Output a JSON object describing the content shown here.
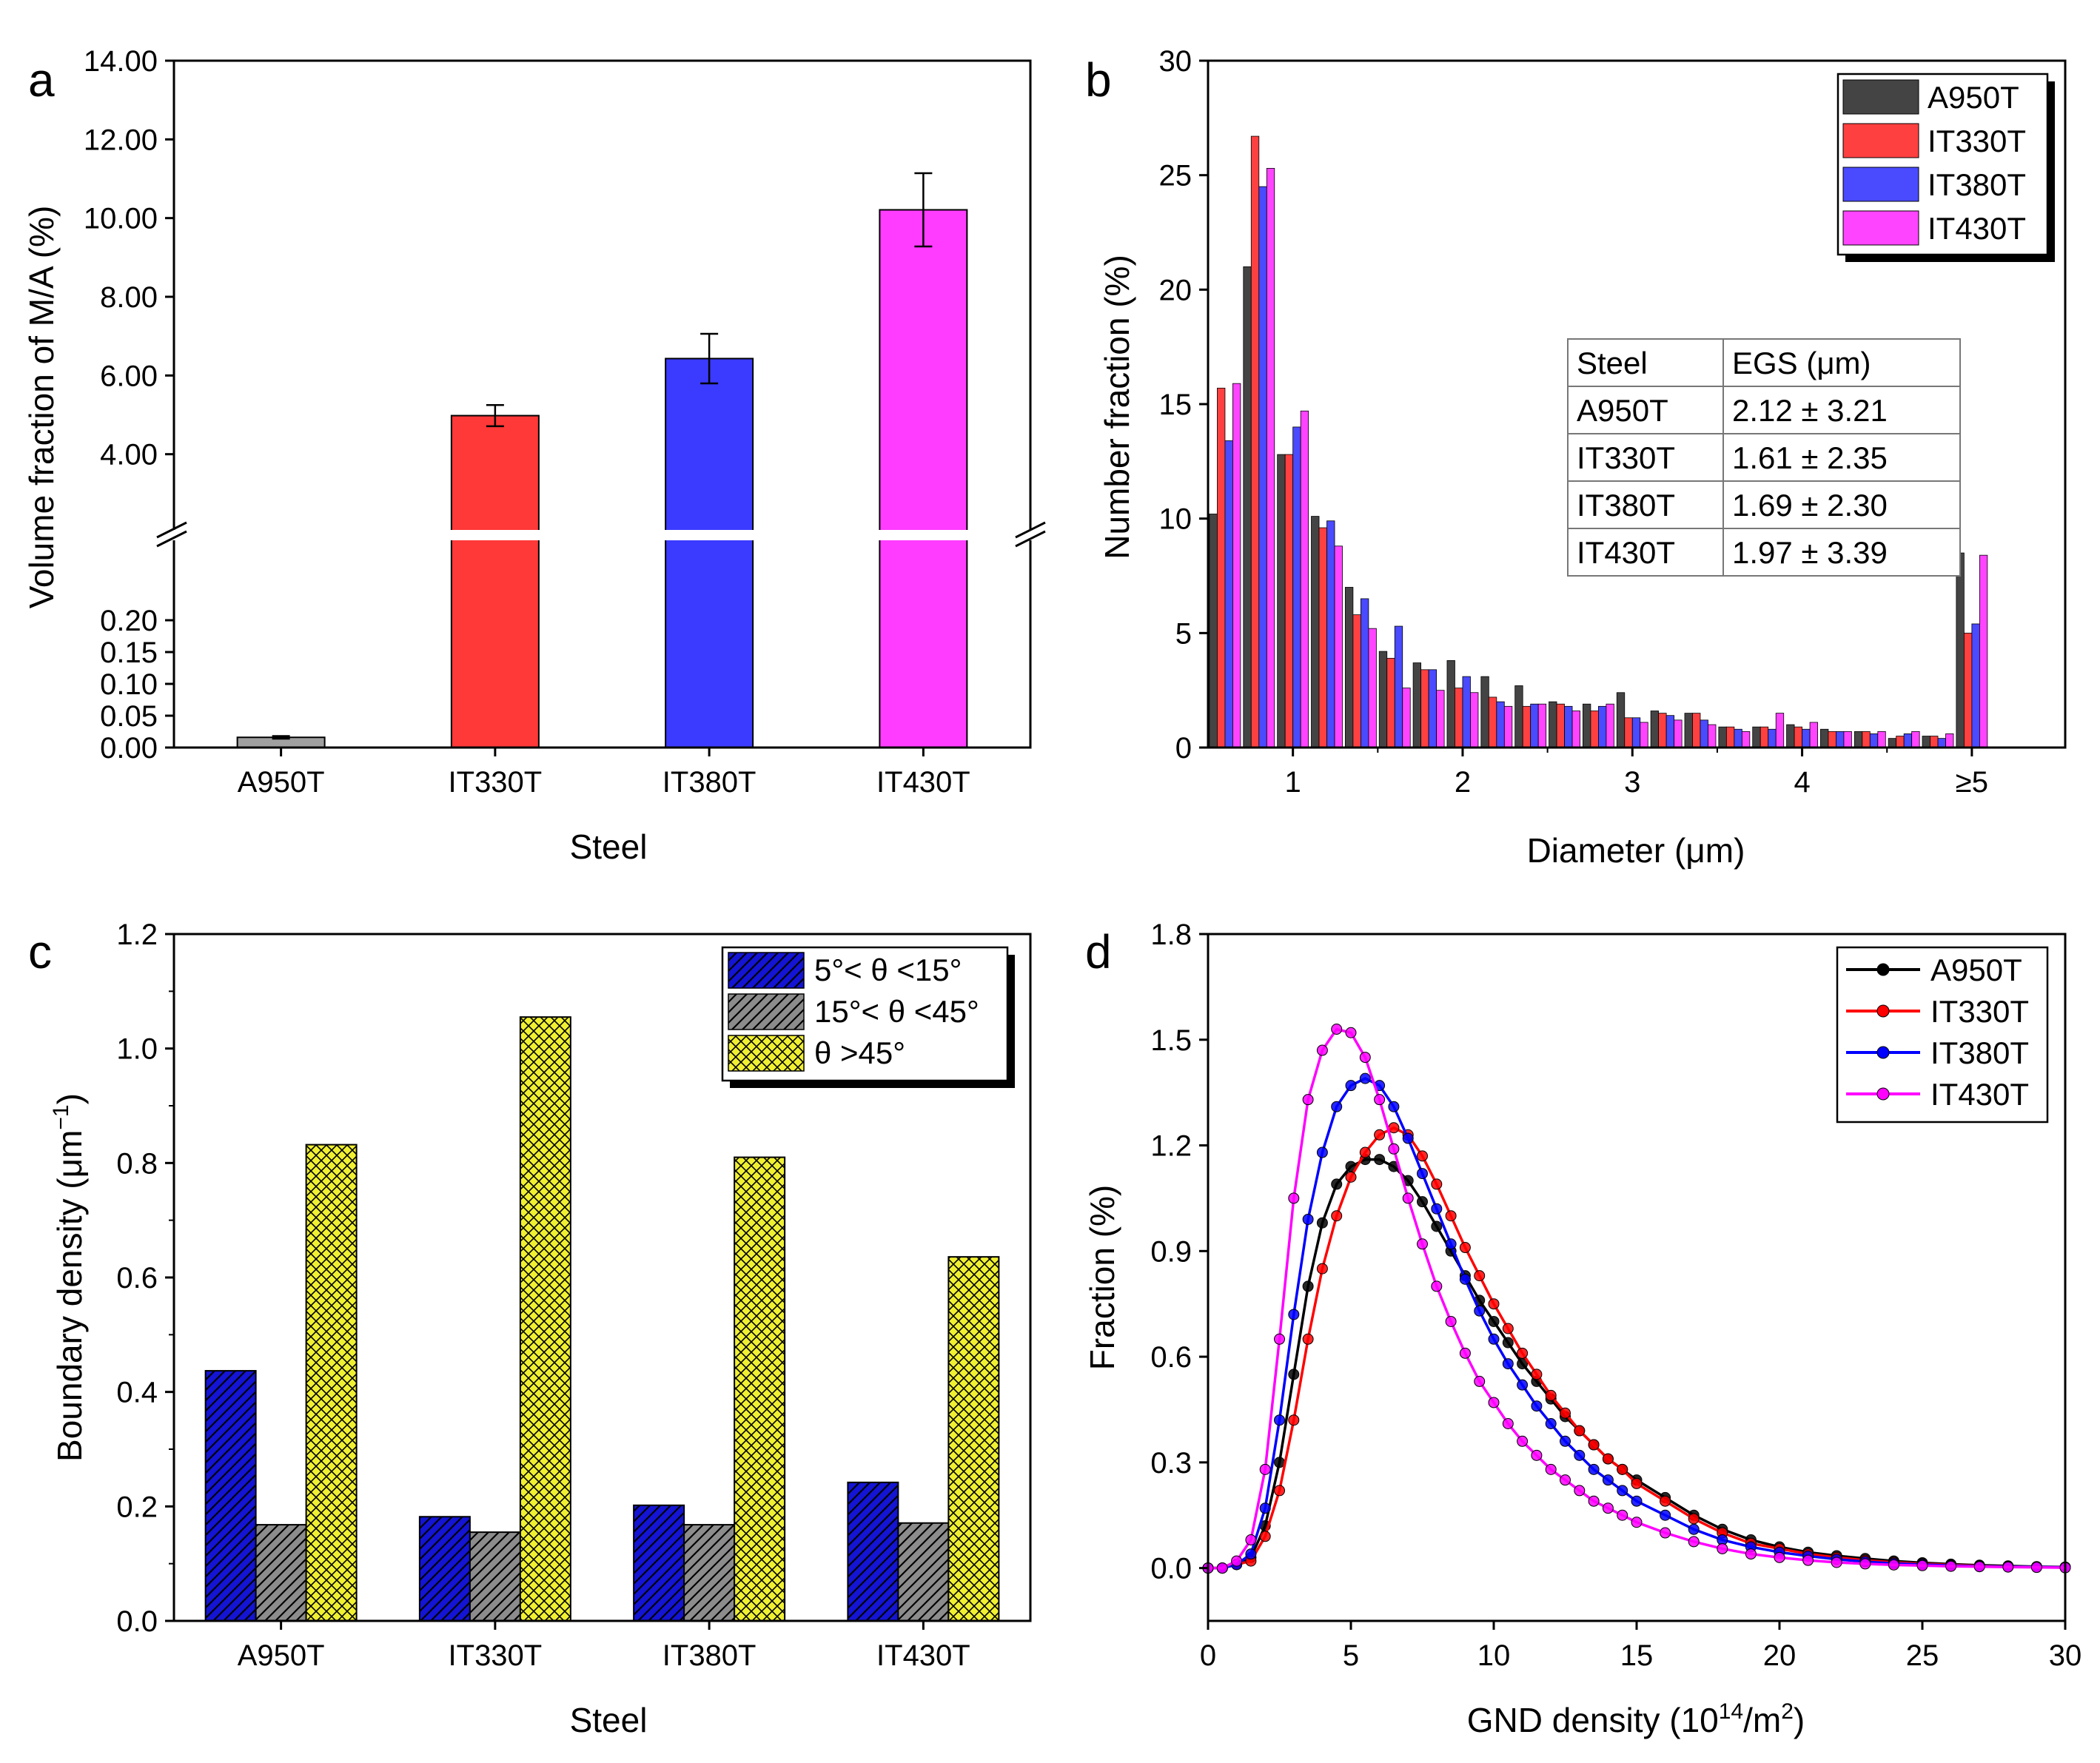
{
  "figure_labels": {
    "a": "a",
    "b": "b",
    "c": "c",
    "d": "d"
  },
  "chart_data": [
    {
      "id": "a",
      "type": "bar",
      "title": "",
      "xlabel": "Steel",
      "ylabel": "Volume fraction of M/A (%)",
      "categories": [
        "A950T",
        "IT330T",
        "IT380T",
        "IT430T"
      ],
      "values": [
        0.016,
        4.98,
        6.43,
        10.21
      ],
      "errors": [
        0.002,
        0.27,
        0.63,
        0.93
      ],
      "colors": [
        "#a0a0a0",
        "#ff3838",
        "#3b3bff",
        "#ff3cff"
      ],
      "axis_break": true,
      "lower_ylim": [
        0,
        0.25
      ],
      "upper_ylim": [
        2,
        14
      ],
      "lower_ticks": [
        "0.00",
        "0.05",
        "0.10",
        "0.15",
        "0.20"
      ],
      "upper_ticks": [
        "4.00",
        "6.00",
        "8.00",
        "10.00",
        "12.00",
        "14.00"
      ]
    },
    {
      "id": "b",
      "type": "bar",
      "title": "",
      "xlabel": "Diameter (μm)",
      "ylabel": "Number fraction (%)",
      "xlim": [
        0.5,
        5.55
      ],
      "ylim": [
        0,
        30
      ],
      "xticks": [
        "1",
        "2",
        "3",
        "4",
        "≥5"
      ],
      "yticks": [
        "0",
        "5",
        "10",
        "15",
        "20",
        "25",
        "30"
      ],
      "bin_centers": [
        0.6,
        0.8,
        1.0,
        1.2,
        1.4,
        1.6,
        1.8,
        2.0,
        2.2,
        2.4,
        2.6,
        2.8,
        3.0,
        3.2,
        3.4,
        3.6,
        3.8,
        4.0,
        4.2,
        4.4,
        4.6,
        4.8,
        5.0
      ],
      "tick_positions": [
        1,
        2,
        3,
        4,
        5
      ],
      "series": [
        {
          "name": "A950T",
          "color": "#444444",
          "values": [
            10.2,
            21.0,
            12.8,
            10.1,
            7.0,
            4.2,
            3.7,
            3.8,
            3.1,
            2.7,
            2.0,
            1.9,
            2.4,
            1.6,
            1.5,
            0.9,
            0.9,
            1.0,
            0.8,
            0.7,
            0.4,
            0.5,
            8.5
          ]
        },
        {
          "name": "IT330T",
          "color": "#ff4040",
          "values": [
            15.7,
            26.7,
            12.8,
            9.6,
            5.8,
            3.9,
            3.4,
            2.6,
            2.2,
            1.8,
            1.9,
            1.6,
            1.3,
            1.5,
            1.5,
            0.9,
            0.9,
            0.9,
            0.7,
            0.7,
            0.5,
            0.5,
            5.0
          ]
        },
        {
          "name": "IT380T",
          "color": "#4a4aff",
          "values": [
            13.4,
            24.5,
            14.0,
            9.9,
            6.5,
            5.3,
            3.4,
            3.1,
            2.0,
            1.9,
            1.8,
            1.8,
            1.3,
            1.4,
            1.2,
            0.8,
            0.8,
            0.8,
            0.7,
            0.6,
            0.6,
            0.4,
            5.4
          ]
        },
        {
          "name": "IT430T",
          "color": "#ff44ff",
          "values": [
            15.9,
            25.3,
            14.7,
            8.8,
            5.2,
            2.6,
            2.5,
            2.4,
            1.8,
            1.9,
            1.6,
            1.9,
            1.1,
            1.2,
            1.0,
            0.7,
            1.5,
            1.1,
            0.7,
            0.7,
            0.7,
            0.6,
            8.4
          ]
        }
      ],
      "table": {
        "headers": [
          "Steel",
          "EGS (μm)"
        ],
        "rows": [
          [
            "A950T",
            "2.12 ± 3.21"
          ],
          [
            "IT330T",
            "1.61 ± 2.35"
          ],
          [
            "IT380T",
            "1.69 ± 2.30"
          ],
          [
            "IT430T",
            "1.97 ± 3.39"
          ]
        ]
      }
    },
    {
      "id": "c",
      "type": "bar",
      "title": "",
      "xlabel": "Steel",
      "ylabel": "Boundary density (μm⁻¹)",
      "ylim": [
        0,
        1.2
      ],
      "yticks": [
        "0.0",
        "0.2",
        "0.4",
        "0.6",
        "0.8",
        "1.0",
        "1.2"
      ],
      "categories": [
        "A950T",
        "IT330T",
        "IT380T",
        "IT430T"
      ],
      "series": [
        {
          "name": "5°< θ <15°",
          "color": "#1414d4",
          "pattern": "diag",
          "values": [
            0.437,
            0.182,
            0.202,
            0.242
          ]
        },
        {
          "name": "15°< θ <45°",
          "color": "#8c8c8c",
          "pattern": "diag",
          "values": [
            0.168,
            0.155,
            0.168,
            0.171
          ]
        },
        {
          "name": "θ >45°",
          "color": "#f0f032",
          "pattern": "cross",
          "values": [
            0.832,
            1.055,
            0.81,
            0.636
          ]
        }
      ]
    },
    {
      "id": "d",
      "type": "line",
      "title": "",
      "xlabel": "GND density (10¹⁴/m²)",
      "ylabel": "Fraction (%)",
      "xlim": [
        0,
        30
      ],
      "ylim": [
        -0.15,
        1.8
      ],
      "xticks": [
        "0",
        "5",
        "10",
        "15",
        "20",
        "25",
        "30"
      ],
      "yticks": [
        "0.0",
        "0.3",
        "0.6",
        "0.9",
        "1.2",
        "1.5",
        "1.8"
      ],
      "x": [
        0,
        0.5,
        1,
        1.5,
        2,
        2.5,
        3,
        3.5,
        4,
        4.5,
        5,
        5.5,
        6,
        6.5,
        7,
        7.5,
        8,
        8.5,
        9,
        9.5,
        10,
        10.5,
        11,
        11.5,
        12,
        12.5,
        13,
        13.5,
        14,
        14.5,
        15,
        16,
        17,
        18,
        19,
        20,
        21,
        22,
        23,
        24,
        25,
        26,
        27,
        28,
        29,
        30
      ],
      "series": [
        {
          "name": "A950T",
          "color": "#000000",
          "values": [
            0,
            0,
            0.01,
            0.03,
            0.12,
            0.3,
            0.55,
            0.8,
            0.98,
            1.09,
            1.14,
            1.16,
            1.16,
            1.14,
            1.1,
            1.04,
            0.97,
            0.9,
            0.83,
            0.76,
            0.7,
            0.64,
            0.58,
            0.53,
            0.48,
            0.43,
            0.39,
            0.35,
            0.31,
            0.28,
            0.25,
            0.2,
            0.15,
            0.11,
            0.08,
            0.06,
            0.045,
            0.035,
            0.027,
            0.02,
            0.015,
            0.011,
            0.008,
            0.006,
            0.004,
            0.003
          ]
        },
        {
          "name": "IT330T",
          "color": "#ff0000",
          "values": [
            0,
            0,
            0.01,
            0.02,
            0.09,
            0.22,
            0.42,
            0.65,
            0.85,
            1.0,
            1.11,
            1.18,
            1.23,
            1.25,
            1.23,
            1.17,
            1.09,
            1.0,
            0.91,
            0.83,
            0.75,
            0.68,
            0.61,
            0.55,
            0.49,
            0.44,
            0.39,
            0.35,
            0.31,
            0.28,
            0.24,
            0.19,
            0.14,
            0.1,
            0.07,
            0.055,
            0.04,
            0.03,
            0.022,
            0.016,
            0.012,
            0.009,
            0.006,
            0.004,
            0.003,
            0.002
          ]
        },
        {
          "name": "IT380T",
          "color": "#0000ff",
          "values": [
            0,
            0,
            0.01,
            0.04,
            0.17,
            0.42,
            0.72,
            0.99,
            1.18,
            1.31,
            1.37,
            1.39,
            1.37,
            1.31,
            1.22,
            1.12,
            1.02,
            0.92,
            0.82,
            0.73,
            0.65,
            0.58,
            0.52,
            0.46,
            0.41,
            0.36,
            0.32,
            0.28,
            0.25,
            0.22,
            0.19,
            0.15,
            0.11,
            0.08,
            0.06,
            0.045,
            0.034,
            0.025,
            0.018,
            0.013,
            0.01,
            0.007,
            0.005,
            0.004,
            0.003,
            0.002
          ]
        },
        {
          "name": "IT430T",
          "color": "#ff00ff",
          "values": [
            0,
            0,
            0.02,
            0.08,
            0.28,
            0.65,
            1.05,
            1.33,
            1.47,
            1.53,
            1.52,
            1.45,
            1.33,
            1.19,
            1.05,
            0.92,
            0.8,
            0.7,
            0.61,
            0.53,
            0.47,
            0.41,
            0.36,
            0.32,
            0.28,
            0.25,
            0.22,
            0.19,
            0.17,
            0.15,
            0.13,
            0.1,
            0.075,
            0.055,
            0.04,
            0.03,
            0.022,
            0.016,
            0.012,
            0.009,
            0.007,
            0.005,
            0.004,
            0.003,
            0.002,
            0.001
          ]
        }
      ]
    }
  ]
}
